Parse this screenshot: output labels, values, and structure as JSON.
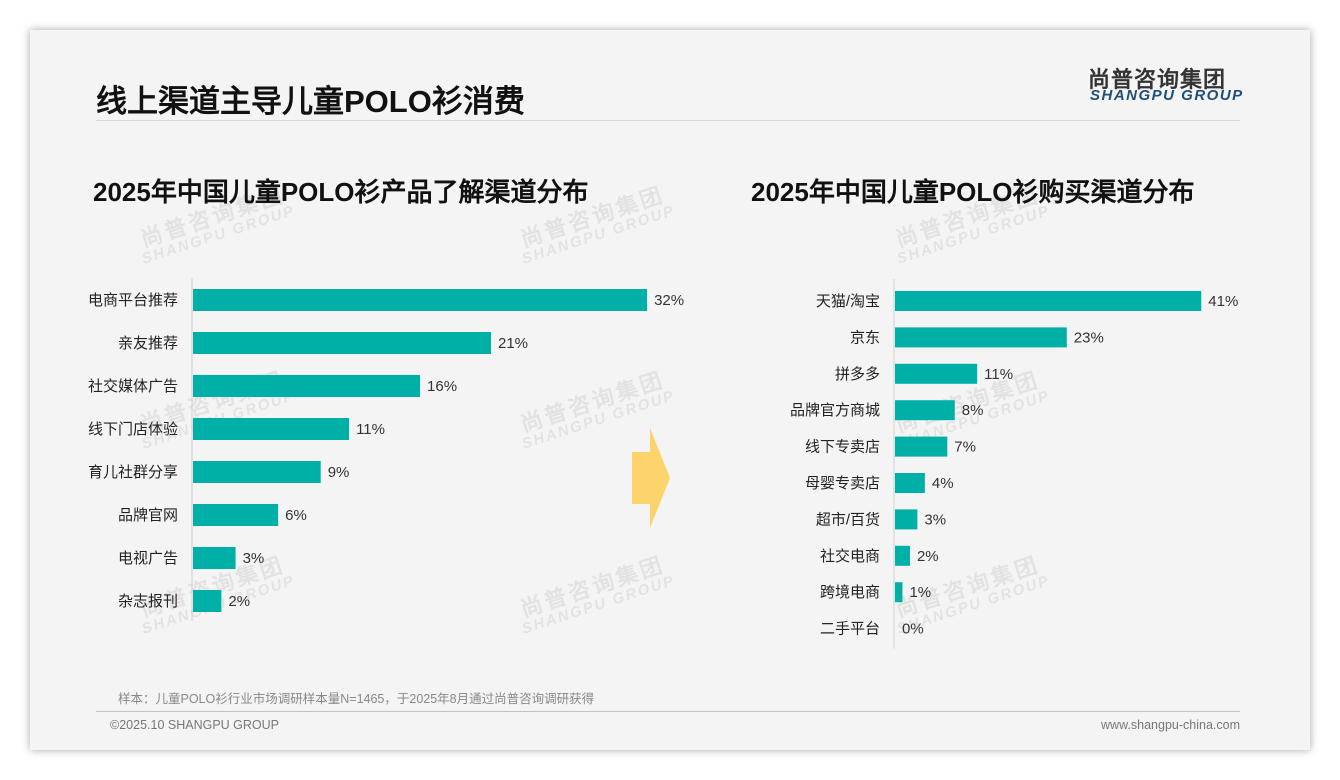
{
  "header": {
    "title": "线上渠道主导儿童POLO衫消费",
    "logo_cn": "尚普咨询集团",
    "logo_en": "SHANGPU GROUP"
  },
  "watermark": {
    "cn": "尚普咨询集团",
    "en": "SHANGPU GROUP"
  },
  "colors": {
    "bar": "#00b0a6",
    "arrow": "#fdd36b"
  },
  "chart_data": [
    {
      "type": "bar",
      "orientation": "horizontal",
      "title": "2025年中国儿童POLO衫产品了解渠道分布",
      "categories": [
        "电商平台推荐",
        "亲友推荐",
        "社交媒体广告",
        "线下门店体验",
        "育儿社群分享",
        "品牌官网",
        "电视广告",
        "杂志报刊"
      ],
      "values": [
        32,
        21,
        16,
        11,
        9,
        6,
        3,
        2
      ],
      "labels": [
        "32%",
        "21%",
        "16%",
        "11%",
        "9%",
        "6%",
        "3%",
        "2%"
      ],
      "unit": "%",
      "xlim": [
        0,
        35
      ]
    },
    {
      "type": "bar",
      "orientation": "horizontal",
      "title": "2025年中国儿童POLO衫购买渠道分布",
      "categories": [
        "天猫/淘宝",
        "京东",
        "拼多多",
        "品牌官方商城",
        "线下专卖店",
        "母婴专卖店",
        "超市/百货",
        "社交电商",
        "跨境电商",
        "二手平台"
      ],
      "values": [
        41,
        23,
        11,
        8,
        7,
        4,
        3,
        2,
        1,
        0
      ],
      "labels": [
        "41%",
        "23%",
        "11%",
        "8%",
        "7%",
        "4%",
        "3%",
        "2%",
        "1%",
        "0%"
      ],
      "unit": "%",
      "xlim": [
        0,
        45
      ]
    }
  ],
  "footer": {
    "note": "样本：儿童POLO衫行业市场调研样本量N=1465，于2025年8月通过尚普咨询调研获得",
    "copyright": "©2025.10 SHANGPU GROUP",
    "website": "www.shangpu-china.com"
  }
}
